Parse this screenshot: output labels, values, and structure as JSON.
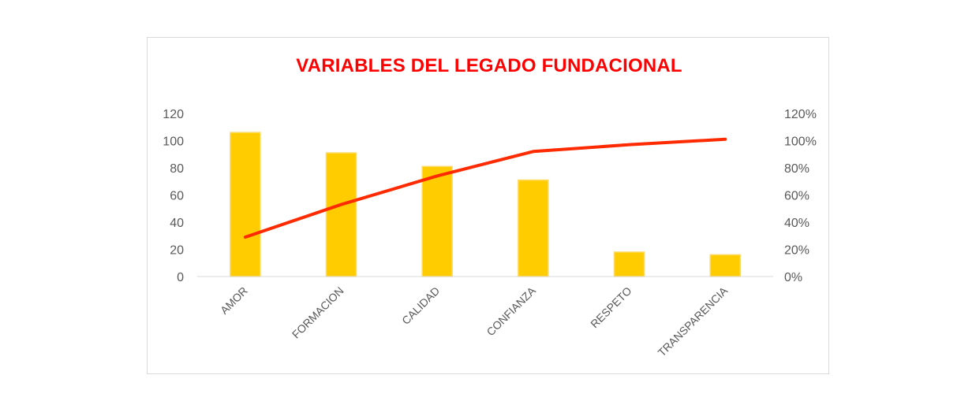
{
  "chart_data": {
    "type": "bar",
    "title": "VARIABLES DEL LEGADO FUNDACIONAL",
    "categories": [
      "AMOR",
      "FORMACION",
      "CALIDAD",
      "CONFIANZA",
      "RESPETO",
      "TRANSPARENCIA"
    ],
    "series": [
      {
        "type": "bar",
        "axis": "left",
        "values": [
          106,
          91,
          81,
          71,
          18,
          16
        ]
      },
      {
        "type": "line",
        "axis": "right",
        "values": [
          0.29,
          0.53,
          0.74,
          0.92,
          0.97,
          1.01
        ]
      }
    ],
    "ylim": [
      0,
      120
    ],
    "yticks": [
      "0",
      "20",
      "40",
      "60",
      "80",
      "100",
      "120"
    ],
    "y2lim": [
      0,
      1.2
    ],
    "y2ticks": [
      "0%",
      "20%",
      "40%",
      "60%",
      "80%",
      "100%",
      "120%"
    ],
    "colors": {
      "bar": "#ffcc00",
      "bar_edge": "#ffd966",
      "line": "#ff2a00",
      "title": "#ff0000"
    },
    "grid": false,
    "legend": "none"
  }
}
